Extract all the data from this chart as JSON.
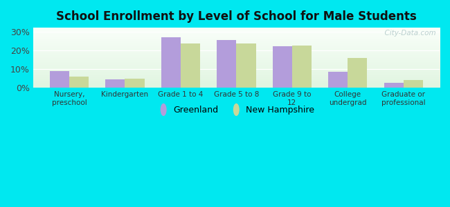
{
  "title": "School Enrollment by Level of School for Male Students",
  "categories": [
    "Nursery,\npreschool",
    "Kindergarten",
    "Grade 1 to 4",
    "Grade 5 to 8",
    "Grade 9 to\n12",
    "College\nundergrad",
    "Graduate or\nprofessional"
  ],
  "greenland": [
    9.0,
    4.5,
    27.0,
    25.5,
    22.0,
    8.5,
    2.5
  ],
  "new_hampshire": [
    6.0,
    4.8,
    23.5,
    23.5,
    22.5,
    16.0,
    4.0
  ],
  "greenland_color": "#b39ddb",
  "new_hampshire_color": "#c8d89a",
  "background_outer": "#00e8f0",
  "background_inner_top": "#e8f5f0",
  "background_inner_bottom": "#d4eedc",
  "title_color": "#111111",
  "ylim": [
    0,
    32
  ],
  "yticks": [
    0,
    10,
    20,
    30
  ],
  "ytick_labels": [
    "0%",
    "10%",
    "20%",
    "30%"
  ],
  "bar_width": 0.35,
  "legend_labels": [
    "Greenland",
    "New Hampshire"
  ],
  "watermark": "  City-Data.com"
}
